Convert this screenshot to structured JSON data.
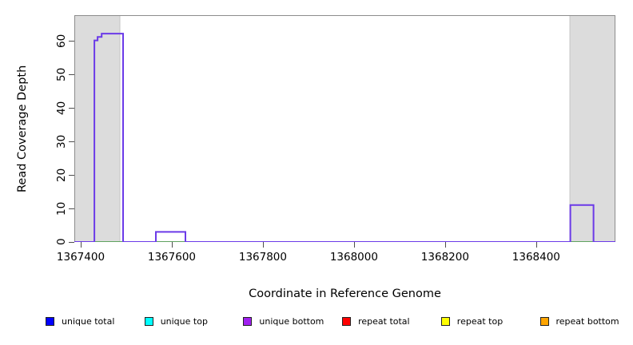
{
  "chart_data": {
    "type": "line",
    "line_style": "step",
    "title": "",
    "xlabel": "Coordinate in Reference Genome",
    "ylabel": "Read Coverage Depth",
    "x_ticks": [
      1367400,
      1367600,
      1367800,
      1368000,
      1368200,
      1368400
    ],
    "y_ticks": [
      0,
      10,
      20,
      30,
      40,
      50,
      60
    ],
    "xlim": [
      1367386,
      1368574
    ],
    "ylim": [
      0,
      67.5
    ],
    "grid": false,
    "frame_color": "#8c8c8c",
    "shaded_regions": [
      {
        "name": "left-flank-shading",
        "x0": 1367386,
        "x1": 1367486,
        "color": "#dcdcdc",
        "border": "#c6c6c6"
      },
      {
        "name": "right-flank-shading",
        "x0": 1368474,
        "x1": 1368574,
        "color": "#dcdcdc",
        "border": "#c6c6c6"
      }
    ],
    "series": [
      {
        "name": "baseline-zero-coverage",
        "color": "#45b045",
        "width": 1.2,
        "points": [
          [
            1367386,
            0
          ],
          [
            1368574,
            0
          ]
        ]
      },
      {
        "name": "unique-bottom-coverage",
        "color": "#6b3ae8",
        "width": 2,
        "points": [
          [
            1367386,
            0
          ],
          [
            1367430,
            0
          ],
          [
            1367430,
            60
          ],
          [
            1367437,
            60
          ],
          [
            1367437,
            61
          ],
          [
            1367446,
            61
          ],
          [
            1367446,
            62
          ],
          [
            1367493,
            62
          ],
          [
            1367493,
            0
          ],
          [
            1367565,
            0
          ],
          [
            1367565,
            3
          ],
          [
            1367630,
            3
          ],
          [
            1367630,
            0
          ],
          [
            1368475,
            0
          ],
          [
            1368475,
            11
          ],
          [
            1368526,
            11
          ],
          [
            1368526,
            0
          ],
          [
            1368574,
            0
          ]
        ]
      }
    ],
    "peaks": [
      {
        "approx_x_range": [
          1367430,
          1367493
        ],
        "max_depth": 62
      },
      {
        "approx_x_range": [
          1367565,
          1367630
        ],
        "max_depth": 3
      },
      {
        "approx_x_range": [
          1368475,
          1368526
        ],
        "max_depth": 11
      }
    ],
    "legend_position": "bottom",
    "legend_entries": [
      {
        "label": "unique total",
        "color": "#0000ff"
      },
      {
        "label": "unique top",
        "color": "#00ffff"
      },
      {
        "label": "unique bottom",
        "color": "#a020f0"
      },
      {
        "label": "repeat total",
        "color": "#ff0000"
      },
      {
        "label": "repeat top",
        "color": "#ffff00"
      },
      {
        "label": "repeat bottom",
        "color": "#ffa500"
      }
    ]
  }
}
